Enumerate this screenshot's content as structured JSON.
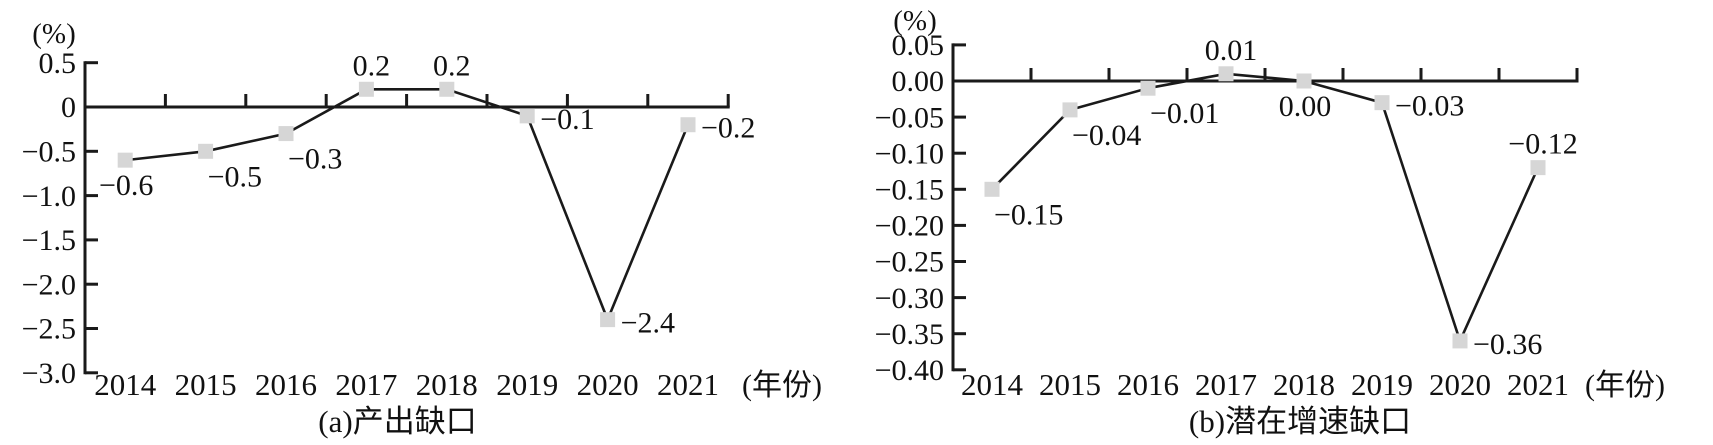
{
  "figure": {
    "description_note": "",
    "background": "#ffffff"
  },
  "colors": {
    "line": "#1a1a1a",
    "marker": "#d6d6d6",
    "text": "#111111"
  },
  "chart_data": [
    {
      "type": "line",
      "panel": "a",
      "caption": "(a)产出缺口",
      "unit_label": "(%)",
      "x_axis_suffix": "(年份)",
      "categories": [
        "2014",
        "2015",
        "2016",
        "2017",
        "2018",
        "2019",
        "2020",
        "2021"
      ],
      "values": [
        -0.6,
        -0.5,
        -0.3,
        0.2,
        0.2,
        -0.1,
        -2.4,
        -0.2
      ],
      "point_labels": [
        "−0.6",
        "−0.5",
        "−0.3",
        "0.2",
        "0.2",
        "−0.1",
        "−2.4",
        "−0.2"
      ],
      "label_pos": [
        "below",
        "below-right",
        "below-right",
        "above",
        "above",
        "right",
        "right",
        "right"
      ],
      "ylim": [
        -3.0,
        0.5
      ],
      "ytick_values": [
        0.5,
        0,
        -0.5,
        -1.0,
        -1.5,
        -2.0,
        -2.5,
        -3.0
      ],
      "ytick_labels": [
        "0.5",
        "0",
        "−0.5",
        "−1.0",
        "−1.5",
        "−2.0",
        "−2.5",
        "−3.0"
      ],
      "grid": false,
      "legend": false,
      "marker": "square"
    },
    {
      "type": "line",
      "panel": "b",
      "caption": "(b)潜在增速缺口",
      "unit_label": "(%)",
      "x_axis_suffix": "(年份)",
      "categories": [
        "2014",
        "2015",
        "2016",
        "2017",
        "2018",
        "2019",
        "2020",
        "2021"
      ],
      "values": [
        -0.15,
        -0.04,
        -0.01,
        0.01,
        0.0,
        -0.03,
        -0.36,
        -0.12
      ],
      "point_labels": [
        "−0.15",
        "−0.04",
        "−0.01",
        "0.01",
        "0.00",
        "−0.03",
        "−0.36",
        "−0.12"
      ],
      "label_pos": [
        "below-right",
        "below-right",
        "below-right",
        "above",
        "below",
        "right",
        "right",
        "above"
      ],
      "ylim": [
        -0.4,
        0.05
      ],
      "ytick_values": [
        0.05,
        0,
        -0.05,
        -0.1,
        -0.15,
        -0.2,
        -0.25,
        -0.3,
        -0.35,
        -0.4
      ],
      "ytick_labels": [
        "0.05",
        "0.00",
        "−0.05",
        "−0.10",
        "−0.15",
        "−0.20",
        "−0.25",
        "−0.30",
        "−0.35",
        "−0.40"
      ],
      "grid": false,
      "legend": false,
      "marker": "square"
    }
  ]
}
